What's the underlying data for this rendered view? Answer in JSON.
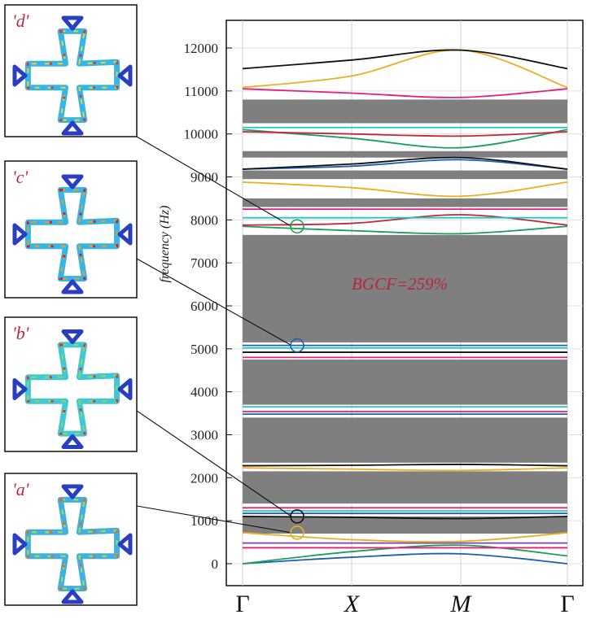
{
  "chart_data": {
    "type": "line",
    "title": "",
    "xlabel": "",
    "ylabel": "frequency (Hz)",
    "x_ticks": [
      "Γ",
      "X",
      "M",
      "Γ"
    ],
    "x": [
      0,
      1,
      2,
      3
    ],
    "ylim": [
      -500,
      12500
    ],
    "yticks": [
      0,
      1000,
      2000,
      3000,
      4000,
      5000,
      6000,
      7000,
      8000,
      9000,
      10000,
      11000,
      12000
    ],
    "grid": true,
    "band_gaps": [
      {
        "from": 700,
        "to": 1100
      },
      {
        "from": 1400,
        "to": 2150
      },
      {
        "from": 2350,
        "to": 3400
      },
      {
        "from": 3700,
        "to": 4750
      },
      {
        "from": 5150,
        "to": 7650
      },
      {
        "from": 8300,
        "to": 8500
      },
      {
        "from": 8950,
        "to": 9150
      },
      {
        "from": 9450,
        "to": 9600
      },
      {
        "from": 10250,
        "to": 10800
      }
    ],
    "annotation": "BGCF=259%",
    "series": [
      {
        "color": "#1f5fb0",
        "values": [
          0,
          150,
          230,
          0
        ]
      },
      {
        "color": "#1aa05a",
        "values": [
          0,
          280,
          430,
          180
        ]
      },
      {
        "color": "#e0207a",
        "values": [
          370,
          370,
          370,
          370
        ]
      },
      {
        "color": "#7a3fb0",
        "values": [
          480,
          480,
          480,
          480
        ]
      },
      {
        "color": "#e8b020",
        "values": [
          720,
          560,
          520,
          720
        ]
      },
      {
        "color": "#111111",
        "values": [
          1100,
          1080,
          1050,
          1100
        ]
      },
      {
        "color": "#1f5fb0",
        "values": [
          1170,
          1170,
          1170,
          1170
        ]
      },
      {
        "color": "#1ec8c8",
        "values": [
          1230,
          1230,
          1230,
          1230
        ]
      },
      {
        "color": "#e0207a",
        "values": [
          1300,
          1300,
          1300,
          1300
        ]
      },
      {
        "color": "#e8b020",
        "values": [
          2230,
          2200,
          2170,
          2230
        ]
      },
      {
        "color": "#111111",
        "values": [
          2280,
          2290,
          2310,
          2280
        ]
      },
      {
        "color": "#1f5fb0",
        "values": [
          3480,
          3480,
          3480,
          3480
        ]
      },
      {
        "color": "#e0207a",
        "values": [
          3540,
          3540,
          3540,
          3540
        ]
      },
      {
        "color": "#1ec8c8",
        "values": [
          3650,
          3650,
          3650,
          3650
        ]
      },
      {
        "color": "#e0207a",
        "values": [
          4800,
          4800,
          4800,
          4800
        ]
      },
      {
        "color": "#111111",
        "values": [
          4920,
          4920,
          4920,
          4920
        ]
      },
      {
        "color": "#1ec8c8",
        "values": [
          5020,
          5020,
          5020,
          5020
        ]
      },
      {
        "color": "#1f5fb0",
        "values": [
          5080,
          5080,
          5080,
          5080
        ]
      },
      {
        "color": "#1aa05a",
        "values": [
          7850,
          7750,
          7680,
          7850
        ]
      },
      {
        "color": "#c0283a",
        "values": [
          7880,
          7920,
          8120,
          7880
        ]
      },
      {
        "color": "#1ec8c8",
        "values": [
          8050,
          8050,
          8050,
          8050
        ]
      },
      {
        "color": "#e0207a",
        "values": [
          8250,
          8250,
          8250,
          8250
        ]
      },
      {
        "color": "#e8b020",
        "values": [
          8880,
          8750,
          8550,
          8880
        ]
      },
      {
        "color": "#1f5fb0",
        "values": [
          9180,
          9250,
          9400,
          9180
        ]
      },
      {
        "color": "#111111",
        "values": [
          9180,
          9300,
          9450,
          9180
        ]
      },
      {
        "color": "#1aa05a",
        "values": [
          10100,
          9900,
          9680,
          10100
        ]
      },
      {
        "color": "#c0283a",
        "values": [
          10050,
          10000,
          9950,
          10050
        ]
      },
      {
        "color": "#1ec8c8",
        "values": [
          10150,
          10150,
          10150,
          10150
        ]
      },
      {
        "color": "#e0207a",
        "values": [
          11050,
          10950,
          10850,
          11050
        ]
      },
      {
        "color": "#e8b020",
        "values": [
          11080,
          11350,
          11950,
          11080
        ]
      },
      {
        "color": "#111111",
        "values": [
          11520,
          11720,
          11950,
          11520
        ]
      }
    ],
    "highlighted_modes": [
      {
        "label": "'a'",
        "x": 0.5,
        "y": 720,
        "color": "#e8b020"
      },
      {
        "label": "'b'",
        "x": 0.5,
        "y": 1100,
        "color": "#111111"
      },
      {
        "label": "'c'",
        "x": 0.5,
        "y": 5080,
        "color": "#1f5fb0"
      },
      {
        "label": "'d'",
        "x": 0.5,
        "y": 7850,
        "color": "#1aa05a"
      }
    ]
  },
  "insets": [
    {
      "label": "'d'"
    },
    {
      "label": "'c'"
    },
    {
      "label": "'b'"
    },
    {
      "label": "'a'"
    }
  ]
}
